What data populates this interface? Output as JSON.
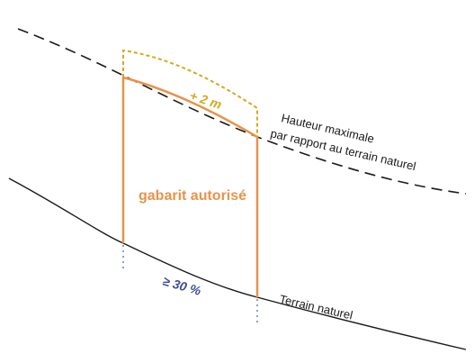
{
  "labels": {
    "max_height_line1": "Hauteur maximale",
    "max_height_line2": "par rapport au terrain naturel",
    "terrain": "Terrain naturel",
    "envelope": "gabarit autorisé",
    "extra_height": "+ 2 m",
    "slope": "≥ 30 %"
  },
  "colors": {
    "envelope": "#e8934a",
    "extra_height": "#d6a81e",
    "slope": "#3d4c9a",
    "lines": "#1a1a1a",
    "dotted_guides": "#6d7fb8"
  }
}
